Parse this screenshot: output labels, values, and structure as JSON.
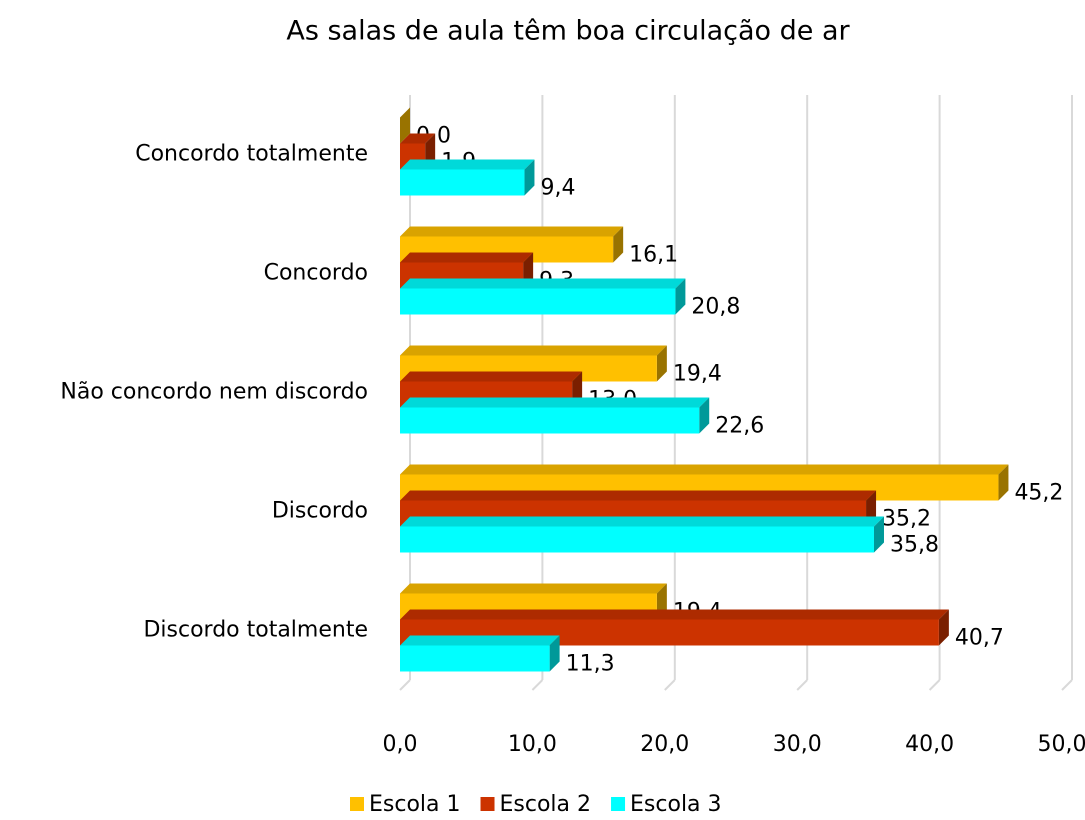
{
  "chart_data": {
    "type": "bar",
    "orientation": "horizontal",
    "title": "As salas de aula têm boa circulação de ar",
    "categories": [
      "Concordo totalmente",
      "Concordo",
      "Não concordo nem discordo",
      "Discordo",
      "Discordo totalmente"
    ],
    "series": [
      {
        "name": "Escola 1",
        "color": "#ffc000",
        "values": [
          0.0,
          16.1,
          19.4,
          45.2,
          19.4
        ],
        "value_labels": [
          "0,0",
          "16,1",
          "19,4",
          "45,2",
          "19,4"
        ]
      },
      {
        "name": "Escola 2",
        "color": "#cc3300",
        "values": [
          1.9,
          9.3,
          13.0,
          35.2,
          40.7
        ],
        "value_labels": [
          "1,9",
          "9,3",
          "13,0",
          "35,2",
          "40,7"
        ]
      },
      {
        "name": "Escola 3",
        "color": "#00ffff",
        "values": [
          9.4,
          20.8,
          22.6,
          35.8,
          11.3
        ],
        "value_labels": [
          "9,4",
          "20,8",
          "22,6",
          "35,8",
          "11,3"
        ]
      }
    ],
    "xlim": [
      0,
      50
    ],
    "xticks": [
      {
        "value": 0,
        "label": "0,0"
      },
      {
        "value": 10,
        "label": "10,0"
      },
      {
        "value": 20,
        "label": "20,0"
      },
      {
        "value": 30,
        "label": "30,0"
      },
      {
        "value": 40,
        "label": "40,0"
      },
      {
        "value": 50,
        "label": "50,0"
      }
    ],
    "grid": true,
    "legend": "bottom"
  }
}
